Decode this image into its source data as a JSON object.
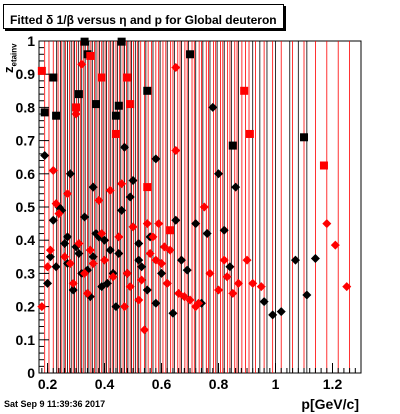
{
  "chart_data": {
    "type": "scatter",
    "title": "Fitted δ 1/β versus η and p for Global deuteron",
    "xlabel": "p[GeV/c]",
    "ylabel": "z",
    "ylabel_sub": "etainv",
    "xlim": [
      0.17,
      1.3
    ],
    "ylim": [
      0,
      1
    ],
    "xticks": [
      0.2,
      0.4,
      0.6,
      0.8,
      1,
      1.2
    ],
    "xticklabels": [
      "0.2",
      "0.4",
      "0.6",
      "0.8",
      "1",
      "1.2"
    ],
    "yticks": [
      0,
      0.1,
      0.2,
      0.3,
      0.4,
      0.5,
      0.6,
      0.7,
      0.8,
      0.9,
      1
    ],
    "yticklabels": [
      "0",
      "0.1",
      "0.2",
      "0.3",
      "0.4",
      "0.5",
      "0.6",
      "0.7",
      "0.8",
      "0.9",
      "1"
    ],
    "footer": "Sat Sep  9 11:39:36 2017",
    "vlines_black": [
      0.232,
      0.245,
      0.258,
      0.27,
      0.283,
      0.295,
      0.308,
      0.32,
      0.332,
      0.345,
      0.357,
      0.37,
      0.382,
      0.395,
      0.407,
      0.42,
      0.432,
      0.445,
      0.457,
      0.47,
      0.482,
      0.495,
      0.508,
      0.52,
      0.545,
      0.57,
      0.595,
      0.62,
      0.645,
      0.67,
      0.695,
      0.72,
      0.745,
      0.77,
      0.795,
      0.82,
      0.845,
      0.87,
      0.92,
      0.945,
      0.97,
      1.0,
      1.05,
      1.08,
      1.11
    ],
    "vlines_red": [
      0.19,
      0.205,
      0.22,
      0.237,
      0.25,
      0.263,
      0.277,
      0.29,
      0.302,
      0.315,
      0.327,
      0.34,
      0.352,
      0.365,
      0.377,
      0.39,
      0.402,
      0.415,
      0.427,
      0.44,
      0.452,
      0.465,
      0.477,
      0.49,
      0.502,
      0.515,
      0.527,
      0.54,
      0.553,
      0.565,
      0.58,
      0.59,
      0.605,
      0.615,
      0.632,
      0.64,
      0.657,
      0.665,
      0.682,
      0.69,
      0.707,
      0.715,
      0.732,
      0.74,
      0.757,
      0.765,
      0.782,
      0.79,
      0.807,
      0.815,
      0.832,
      0.84,
      0.857,
      0.865,
      0.882,
      0.895,
      0.907,
      0.93,
      0.96,
      0.99,
      1.02,
      1.06,
      1.1,
      1.14,
      1.18,
      1.22,
      1.26
    ],
    "series": [
      {
        "color": "#000000",
        "squares": [
          [
            0.33,
            0.998
          ],
          [
            0.46,
            0.998
          ],
          [
            0.22,
            0.89
          ],
          [
            0.31,
            0.84
          ],
          [
            0.34,
            0.96
          ],
          [
            0.37,
            0.81
          ],
          [
            0.44,
            0.775
          ],
          [
            0.45,
            0.805
          ],
          [
            0.19,
            0.785
          ],
          [
            0.23,
            0.775
          ],
          [
            0.55,
            0.85
          ],
          [
            0.7,
            0.96
          ],
          [
            0.85,
            0.685
          ],
          [
            1.1,
            0.71
          ]
        ],
        "diamonds": [
          [
            0.19,
            0.655
          ],
          [
            0.2,
            0.27
          ],
          [
            0.21,
            0.35
          ],
          [
            0.22,
            0.46
          ],
          [
            0.23,
            0.32
          ],
          [
            0.24,
            0.5
          ],
          [
            0.25,
            0.49
          ],
          [
            0.26,
            0.39
          ],
          [
            0.27,
            0.33
          ],
          [
            0.28,
            0.6
          ],
          [
            0.29,
            0.25
          ],
          [
            0.3,
            0.38
          ],
          [
            0.31,
            0.36
          ],
          [
            0.32,
            0.3
          ],
          [
            0.33,
            0.47
          ],
          [
            0.34,
            0.31
          ],
          [
            0.35,
            0.23
          ],
          [
            0.36,
            0.56
          ],
          [
            0.37,
            0.42
          ],
          [
            0.38,
            0.41
          ],
          [
            0.4,
            0.4
          ],
          [
            0.41,
            0.27
          ],
          [
            0.42,
            0.37
          ],
          [
            0.43,
            0.3
          ],
          [
            0.45,
            0.36
          ],
          [
            0.46,
            0.49
          ],
          [
            0.47,
            0.68
          ],
          [
            0.48,
            0.3
          ],
          [
            0.49,
            0.53
          ],
          [
            0.5,
            0.58
          ],
          [
            0.52,
            0.39
          ],
          [
            0.53,
            0.32
          ],
          [
            0.55,
            0.25
          ],
          [
            0.56,
            0.41
          ],
          [
            0.58,
            0.645
          ],
          [
            0.6,
            0.3
          ],
          [
            0.62,
            0.27
          ],
          [
            0.64,
            0.18
          ],
          [
            0.65,
            0.46
          ],
          [
            0.67,
            0.34
          ],
          [
            0.69,
            0.31
          ],
          [
            0.72,
            0.45
          ],
          [
            0.74,
            0.21
          ],
          [
            0.76,
            0.42
          ],
          [
            0.78,
            0.8
          ],
          [
            0.8,
            0.6
          ],
          [
            0.82,
            0.43
          ],
          [
            0.84,
            0.32
          ],
          [
            0.86,
            0.56
          ],
          [
            0.96,
            0.215
          ],
          [
            0.99,
            0.175
          ],
          [
            1.02,
            0.185
          ],
          [
            1.07,
            0.34
          ],
          [
            1.11,
            0.235
          ],
          [
            1.14,
            0.345
          ],
          [
            0.52,
            0.34
          ],
          [
            0.44,
            0.2
          ],
          [
            0.39,
            0.26
          ],
          [
            0.27,
            0.41
          ],
          [
            0.58,
            0.21
          ],
          [
            0.36,
            0.35
          ]
        ]
      },
      {
        "color": "#ff0000",
        "squares": [
          [
            0.18,
            0.91
          ],
          [
            0.3,
            0.8
          ],
          [
            0.35,
            0.955
          ],
          [
            0.39,
            0.89
          ],
          [
            0.44,
            0.72
          ],
          [
            0.48,
            0.89
          ],
          [
            0.49,
            0.81
          ],
          [
            0.55,
            0.56
          ],
          [
            0.63,
            0.43
          ],
          [
            0.89,
            0.85
          ],
          [
            0.91,
            0.72
          ],
          [
            1.17,
            0.625
          ]
        ],
        "diamonds": [
          [
            0.18,
            0.2
          ],
          [
            0.2,
            0.32
          ],
          [
            0.21,
            0.37
          ],
          [
            0.22,
            0.61
          ],
          [
            0.23,
            0.51
          ],
          [
            0.24,
            0.48
          ],
          [
            0.26,
            0.35
          ],
          [
            0.27,
            0.54
          ],
          [
            0.28,
            0.33
          ],
          [
            0.29,
            0.27
          ],
          [
            0.3,
            0.78
          ],
          [
            0.31,
            0.39
          ],
          [
            0.32,
            0.93
          ],
          [
            0.33,
            0.3
          ],
          [
            0.34,
            0.24
          ],
          [
            0.35,
            0.37
          ],
          [
            0.36,
            0.33
          ],
          [
            0.38,
            0.52
          ],
          [
            0.39,
            0.42
          ],
          [
            0.4,
            0.34
          ],
          [
            0.42,
            0.55
          ],
          [
            0.43,
            0.29
          ],
          [
            0.45,
            0.41
          ],
          [
            0.46,
            0.57
          ],
          [
            0.47,
            0.2
          ],
          [
            0.48,
            0.3
          ],
          [
            0.49,
            0.26
          ],
          [
            0.5,
            0.44
          ],
          [
            0.52,
            0.22
          ],
          [
            0.54,
            0.13
          ],
          [
            0.55,
            0.45
          ],
          [
            0.56,
            0.36
          ],
          [
            0.57,
            0.41
          ],
          [
            0.58,
            0.34
          ],
          [
            0.59,
            0.45
          ],
          [
            0.6,
            0.33
          ],
          [
            0.61,
            0.38
          ],
          [
            0.62,
            0.27
          ],
          [
            0.63,
            0.37
          ],
          [
            0.65,
            0.92
          ],
          [
            0.66,
            0.24
          ],
          [
            0.68,
            0.23
          ],
          [
            0.7,
            0.22
          ],
          [
            0.72,
            0.2
          ],
          [
            0.73,
            0.21
          ],
          [
            0.75,
            0.5
          ],
          [
            0.77,
            0.3
          ],
          [
            0.8,
            0.25
          ],
          [
            0.82,
            0.34
          ],
          [
            0.83,
            0.29
          ],
          [
            0.85,
            0.24
          ],
          [
            0.87,
            0.27
          ],
          [
            0.9,
            0.34
          ],
          [
            0.92,
            0.27
          ],
          [
            0.95,
            0.26
          ],
          [
            1.18,
            0.45
          ],
          [
            1.21,
            0.385
          ],
          [
            1.25,
            0.26
          ],
          [
            0.65,
            0.67
          ],
          [
            0.53,
            0.28
          ]
        ]
      }
    ]
  }
}
